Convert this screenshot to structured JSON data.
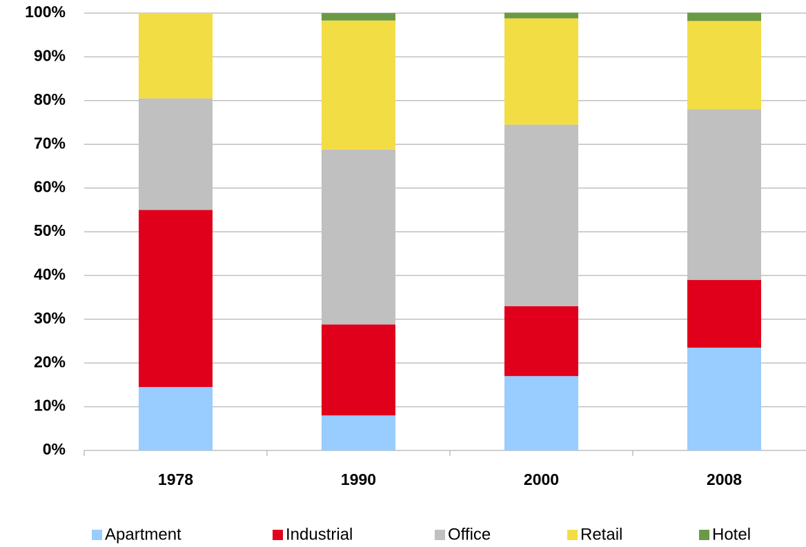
{
  "chart_data": {
    "type": "stacked_bar",
    "categories": [
      "1978",
      "1990",
      "2000",
      "2008"
    ],
    "series": [
      {
        "name": "Apartment",
        "color": "#99ccff",
        "values": [
          14.5,
          8,
          17,
          23.5
        ]
      },
      {
        "name": "Industrial",
        "color": "#e0001b",
        "values": [
          40.5,
          20.8,
          16,
          15.5
        ]
      },
      {
        "name": "Office",
        "color": "#c0c0c0",
        "values": [
          25.5,
          40,
          41.5,
          39
        ]
      },
      {
        "name": "Retail",
        "color": "#f3dd45",
        "values": [
          19.5,
          29.5,
          24.3,
          20.2
        ]
      },
      {
        "name": "Hotel",
        "color": "#6a9a46",
        "values": [
          0,
          1.7,
          1.3,
          1.9
        ]
      }
    ],
    "ylim": [
      0,
      100
    ],
    "yticks": [
      {
        "value": 0,
        "label": "0%"
      },
      {
        "value": 10,
        "label": "10%"
      },
      {
        "value": 20,
        "label": "20%"
      },
      {
        "value": 30,
        "label": "30%"
      },
      {
        "value": 40,
        "label": "40%"
      },
      {
        "value": 50,
        "label": "50%"
      },
      {
        "value": 60,
        "label": "60%"
      },
      {
        "value": 70,
        "label": "70%"
      },
      {
        "value": 80,
        "label": "80%"
      },
      {
        "value": 90,
        "label": "90%"
      },
      {
        "value": 100,
        "label": "100%"
      }
    ],
    "grid": true,
    "legend": "bottom"
  }
}
